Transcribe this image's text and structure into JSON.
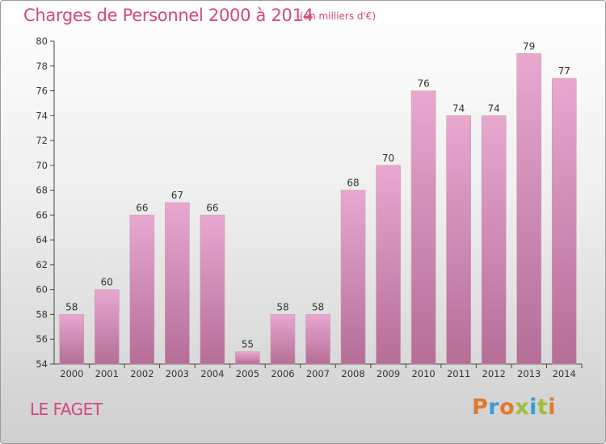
{
  "header": {
    "title": "Charges de Personnel 2000 à 2014",
    "subtitle": "(en milliers d'€)"
  },
  "footer": {
    "commune": "LE FAGET",
    "logo": "Proxiti"
  },
  "colors": {
    "title": "#d2477f",
    "bar_top": "#e8a8cf",
    "bar_bottom": "#b46e97",
    "logo": [
      "#e0792b",
      "#3a9bd8",
      "#e0792b",
      "#9fbf3a",
      "#3a9bd8",
      "#9fbf3a",
      "#e0792b"
    ]
  },
  "chart_data": {
    "type": "bar",
    "categories": [
      "2000",
      "2001",
      "2002",
      "2003",
      "2004",
      "2005",
      "2006",
      "2007",
      "2008",
      "2009",
      "2010",
      "2011",
      "2012",
      "2013",
      "2014"
    ],
    "values": [
      58,
      60,
      66,
      67,
      66,
      55,
      58,
      58,
      68,
      70,
      76,
      74,
      74,
      79,
      77
    ],
    "data_labels": [
      "58",
      "60",
      "66",
      "67",
      "66",
      "55",
      "58",
      "58",
      "68",
      "70",
      "76",
      "74",
      "74",
      "79",
      "77"
    ],
    "ylim": [
      54,
      80
    ],
    "yticks": [
      "54",
      "56",
      "58",
      "60",
      "62",
      "64",
      "66",
      "68",
      "70",
      "72",
      "74",
      "76",
      "78",
      "80"
    ],
    "grid": false
  }
}
